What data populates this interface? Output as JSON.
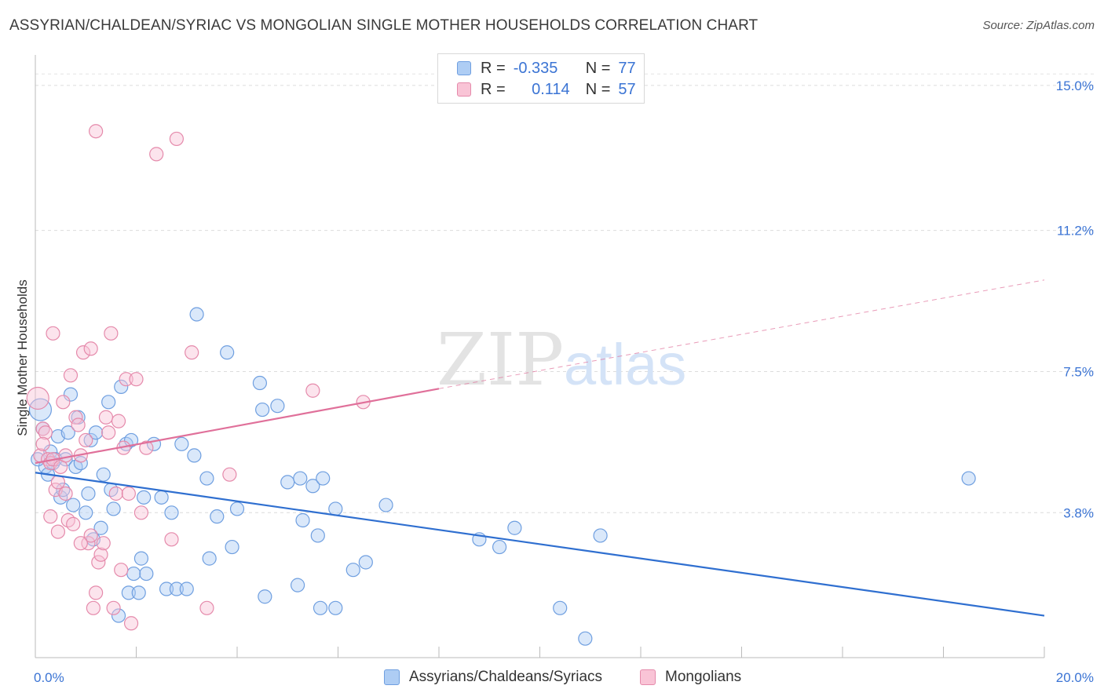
{
  "title": "ASSYRIAN/CHALDEAN/SYRIAC VS MONGOLIAN SINGLE MOTHER HOUSEHOLDS CORRELATION CHART",
  "source": "Source: ZipAtlas.com",
  "watermark": {
    "zip": "ZIP",
    "atlas": "atlas"
  },
  "legend": {
    "rows": [
      {
        "r_label": "R =",
        "r_value": "-0.335",
        "n_label": "N =",
        "n_value": "77",
        "color": "#aecdf4",
        "border": "#6f9fe0"
      },
      {
        "r_label": "R =",
        "r_value": "0.114",
        "n_label": "N =",
        "n_value": "57",
        "color": "#f9c4d6",
        "border": "#e58aab"
      }
    ]
  },
  "bottom_legend": [
    {
      "label": "Assyrians/Chaldeans/Syriacs",
      "color": "#aecdf4",
      "border": "#6f9fe0"
    },
    {
      "label": "Mongolians",
      "color": "#f9c4d6",
      "border": "#e58aab"
    }
  ],
  "chart_data": {
    "type": "scatter",
    "title": "ASSYRIAN/CHALDEAN/SYRIAC VS MONGOLIAN SINGLE MOTHER HOUSEHOLDS CORRELATION CHART",
    "xlabel": "",
    "ylabel": "Single Mother Households",
    "xlim": [
      0,
      20
    ],
    "ylim": [
      0,
      15.8
    ],
    "x_tick_labels": [
      "0.0%",
      "20.0%"
    ],
    "y_ticks": [
      3.8,
      7.5,
      11.2,
      15.0
    ],
    "y_tick_labels": [
      "3.8%",
      "7.5%",
      "11.2%",
      "15.0%"
    ],
    "grid": true,
    "series": [
      {
        "name": "Assyrians/Chaldeans/Syriacs",
        "color": "#6f9fe0",
        "fill": "#aecdf4",
        "trend": {
          "x": [
            0,
            20
          ],
          "y": [
            4.85,
            1.1
          ],
          "color": "#2f6fd0"
        },
        "points": [
          [
            0.1,
            6.5
          ],
          [
            0.15,
            6.0
          ],
          [
            0.2,
            5.0
          ],
          [
            0.25,
            4.8
          ],
          [
            0.3,
            5.4
          ],
          [
            0.35,
            5.1
          ],
          [
            0.4,
            5.2
          ],
          [
            0.45,
            5.8
          ],
          [
            0.5,
            4.2
          ],
          [
            0.55,
            4.4
          ],
          [
            0.6,
            5.2
          ],
          [
            0.65,
            5.9
          ],
          [
            0.7,
            6.9
          ],
          [
            0.75,
            4.0
          ],
          [
            0.8,
            5.0
          ],
          [
            0.85,
            6.3
          ],
          [
            0.9,
            5.1
          ],
          [
            1.0,
            3.8
          ],
          [
            1.05,
            4.3
          ],
          [
            1.1,
            5.7
          ],
          [
            1.15,
            3.1
          ],
          [
            1.2,
            5.9
          ],
          [
            1.3,
            3.4
          ],
          [
            1.35,
            4.8
          ],
          [
            1.45,
            6.7
          ],
          [
            1.5,
            4.4
          ],
          [
            1.55,
            3.9
          ],
          [
            1.65,
            1.1
          ],
          [
            1.7,
            7.1
          ],
          [
            1.8,
            5.6
          ],
          [
            1.85,
            1.7
          ],
          [
            1.9,
            5.7
          ],
          [
            1.95,
            2.2
          ],
          [
            2.05,
            1.7
          ],
          [
            2.1,
            2.6
          ],
          [
            2.15,
            4.2
          ],
          [
            2.2,
            2.2
          ],
          [
            2.35,
            5.6
          ],
          [
            2.5,
            4.2
          ],
          [
            2.6,
            1.8
          ],
          [
            2.7,
            3.8
          ],
          [
            2.8,
            1.8
          ],
          [
            2.9,
            5.6
          ],
          [
            3.0,
            1.8
          ],
          [
            3.15,
            5.3
          ],
          [
            3.2,
            9.0
          ],
          [
            3.4,
            4.7
          ],
          [
            3.45,
            2.6
          ],
          [
            3.6,
            3.7
          ],
          [
            3.8,
            8.0
          ],
          [
            3.9,
            2.9
          ],
          [
            4.0,
            3.9
          ],
          [
            4.45,
            7.2
          ],
          [
            4.5,
            6.5
          ],
          [
            4.55,
            1.6
          ],
          [
            4.8,
            6.6
          ],
          [
            5.0,
            4.6
          ],
          [
            5.2,
            1.9
          ],
          [
            5.25,
            4.7
          ],
          [
            5.3,
            3.6
          ],
          [
            5.5,
            4.5
          ],
          [
            5.6,
            3.2
          ],
          [
            5.65,
            1.3
          ],
          [
            5.7,
            4.7
          ],
          [
            5.95,
            1.3
          ],
          [
            5.95,
            3.9
          ],
          [
            6.3,
            2.3
          ],
          [
            6.55,
            2.5
          ],
          [
            6.95,
            4.0
          ],
          [
            8.8,
            3.1
          ],
          [
            9.2,
            2.9
          ],
          [
            9.5,
            3.4
          ],
          [
            10.4,
            1.3
          ],
          [
            10.9,
            0.5
          ],
          [
            11.2,
            3.2
          ],
          [
            18.5,
            4.7
          ],
          [
            0.05,
            5.2
          ]
        ]
      },
      {
        "name": "Mongolians",
        "color": "#e58aab",
        "fill": "#f9c4d6",
        "trend": {
          "x": [
            0,
            8
          ],
          "y": [
            5.1,
            7.05
          ],
          "dashed_to": [
            20,
            9.9
          ],
          "color": "#e0709a"
        },
        "points": [
          [
            0.05,
            6.8
          ],
          [
            0.1,
            5.3
          ],
          [
            0.15,
            6.0
          ],
          [
            0.2,
            5.9
          ],
          [
            0.25,
            5.2
          ],
          [
            0.3,
            5.1
          ],
          [
            0.35,
            5.2
          ],
          [
            0.4,
            4.4
          ],
          [
            0.45,
            4.6
          ],
          [
            0.5,
            5.0
          ],
          [
            0.55,
            6.7
          ],
          [
            0.6,
            4.3
          ],
          [
            0.65,
            3.6
          ],
          [
            0.7,
            7.4
          ],
          [
            0.75,
            3.5
          ],
          [
            0.8,
            6.3
          ],
          [
            0.85,
            6.1
          ],
          [
            0.9,
            5.3
          ],
          [
            0.95,
            8.0
          ],
          [
            1.0,
            5.7
          ],
          [
            1.05,
            3.0
          ],
          [
            1.1,
            3.2
          ],
          [
            1.15,
            1.3
          ],
          [
            1.2,
            1.7
          ],
          [
            1.25,
            2.5
          ],
          [
            1.3,
            2.7
          ],
          [
            1.35,
            3.0
          ],
          [
            1.4,
            6.3
          ],
          [
            1.45,
            5.9
          ],
          [
            1.5,
            8.5
          ],
          [
            1.55,
            1.3
          ],
          [
            1.6,
            4.3
          ],
          [
            1.65,
            6.2
          ],
          [
            1.7,
            2.3
          ],
          [
            1.75,
            5.5
          ],
          [
            1.8,
            7.3
          ],
          [
            1.85,
            4.3
          ],
          [
            1.9,
            0.9
          ],
          [
            2.0,
            7.3
          ],
          [
            2.1,
            3.8
          ],
          [
            2.2,
            5.5
          ],
          [
            2.4,
            13.2
          ],
          [
            2.7,
            3.1
          ],
          [
            2.8,
            13.6
          ],
          [
            3.1,
            8.0
          ],
          [
            3.4,
            1.3
          ],
          [
            3.85,
            4.8
          ],
          [
            5.5,
            7.0
          ],
          [
            6.5,
            6.7
          ],
          [
            1.2,
            13.8
          ],
          [
            0.3,
            3.7
          ],
          [
            0.35,
            8.5
          ],
          [
            1.1,
            8.1
          ],
          [
            0.9,
            3.0
          ],
          [
            0.6,
            5.3
          ],
          [
            0.45,
            3.3
          ],
          [
            0.15,
            5.6
          ]
        ]
      }
    ]
  }
}
